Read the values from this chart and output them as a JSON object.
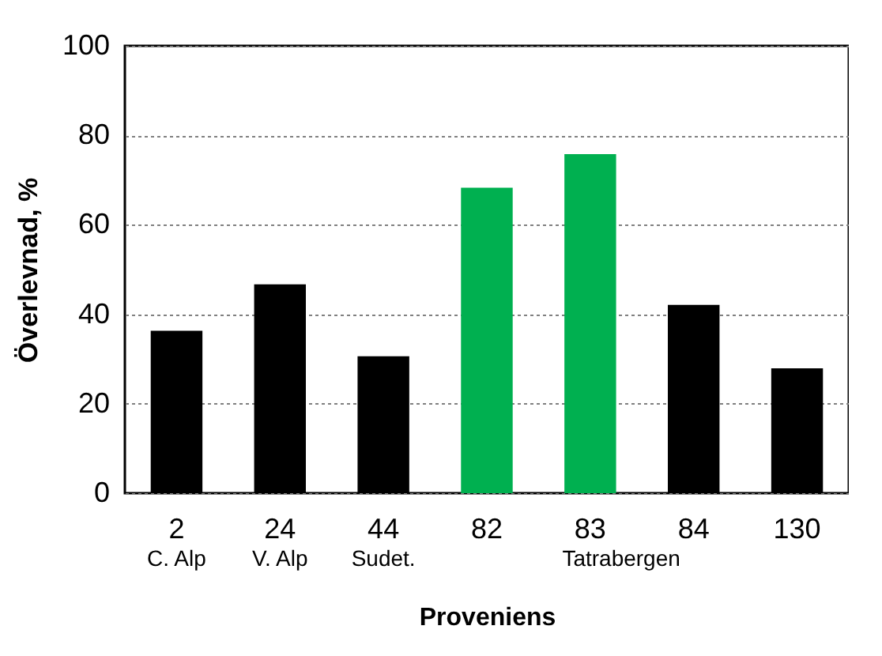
{
  "chart_data": {
    "type": "bar",
    "xlabel": "Proveniens",
    "ylabel": "Överlevnad, %",
    "categories": [
      "2",
      "24",
      "44",
      "82",
      "83",
      "84",
      "130"
    ],
    "values": [
      36.3,
      46.7,
      30.6,
      68.3,
      75.8,
      42.1,
      27.9
    ],
    "colors": [
      "#000000",
      "#000000",
      "#000000",
      "#00b050",
      "#00b050",
      "#000000",
      "#000000"
    ],
    "ylim": [
      0,
      100
    ],
    "yticks": [
      0,
      20,
      40,
      60,
      80,
      100
    ],
    "grid": "y",
    "annotations": [
      "C. Alp",
      "V. Alp",
      "Sudet.",
      "Tatrabergen"
    ]
  }
}
